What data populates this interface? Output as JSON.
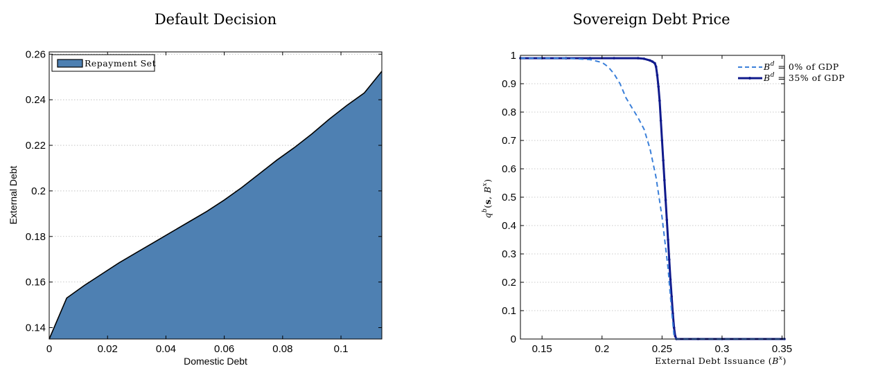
{
  "chart_data": [
    {
      "type": "area",
      "title": "Default Decision",
      "xlabel": "Domestic Debt",
      "ylabel": "External Debt",
      "xlim": [
        0,
        0.114
      ],
      "ylim": [
        0.135,
        0.261
      ],
      "x_ticks": [
        0,
        0.02,
        0.04,
        0.06,
        0.08,
        0.1
      ],
      "x_tick_labels": [
        "0",
        "0.02",
        "0.04",
        "0.06",
        "0.08",
        "0.1"
      ],
      "y_ticks": [
        0.14,
        0.16,
        0.18,
        0.2,
        0.22,
        0.24,
        0.26
      ],
      "y_tick_labels": [
        "0.14",
        "0.16",
        "0.18",
        "0.2",
        "0.22",
        "0.24",
        "0.26"
      ],
      "grid": "horizontal dotted",
      "legend_position": "top-left",
      "series": [
        {
          "name": "Repayment Set",
          "color": "#4e80b2",
          "x": [
            0,
            0.006,
            0.012,
            0.018,
            0.024,
            0.03,
            0.036,
            0.042,
            0.048,
            0.054,
            0.06,
            0.066,
            0.072,
            0.078,
            0.084,
            0.09,
            0.096,
            0.102,
            0.108,
            0.114
          ],
          "y": [
            0.135,
            0.153,
            0.1585,
            0.1635,
            0.1685,
            0.173,
            0.1775,
            0.182,
            0.1865,
            0.191,
            0.196,
            0.2015,
            0.2075,
            0.2135,
            0.219,
            0.225,
            0.2315,
            0.2375,
            0.243,
            0.2525
          ]
        }
      ]
    },
    {
      "type": "line",
      "title": "Sovereign Debt Price",
      "xlabel": "External Debt Issuance (B^{x})",
      "ylabel": "q^b(s, B^x)",
      "xlim": [
        0.132,
        0.352
      ],
      "ylim": [
        0,
        1
      ],
      "x_ticks": [
        0.15,
        0.2,
        0.25,
        0.3,
        0.35
      ],
      "x_tick_labels": [
        "0.15",
        "0.2",
        "0.25",
        "0.3",
        "0.35"
      ],
      "y_ticks": [
        0,
        0.1,
        0.2,
        0.3,
        0.4,
        0.5,
        0.6,
        0.7,
        0.8,
        0.9,
        1
      ],
      "y_tick_labels": [
        "0",
        "0.1",
        "0.2",
        "0.3",
        "0.4",
        "0.5",
        "0.6",
        "0.7",
        "0.8",
        "0.9",
        "1"
      ],
      "grid": "horizontal dotted",
      "legend_position": "top-right",
      "series": [
        {
          "name": "B^d = 0% of GDP",
          "legend_sup": "d",
          "legend_rest": " = 0% of GDP",
          "style": "dashed",
          "color": "#3a7fd9",
          "x": [
            0.132,
            0.15,
            0.17,
            0.19,
            0.2,
            0.205,
            0.21,
            0.215,
            0.22,
            0.225,
            0.23,
            0.235,
            0.24,
            0.245,
            0.25,
            0.255,
            0.258,
            0.26,
            0.262,
            0.28,
            0.3,
            0.352
          ],
          "y": [
            0.99,
            0.99,
            0.99,
            0.985,
            0.975,
            0.96,
            0.935,
            0.9,
            0.85,
            0.815,
            0.78,
            0.74,
            0.67,
            0.57,
            0.43,
            0.25,
            0.1,
            0.01,
            0.0,
            0.0,
            0.0,
            0.0
          ]
        },
        {
          "name": "B^d = 35% of GDP",
          "legend_sup": "d",
          "legend_rest": " = 35% of GDP",
          "style": "solid-with-markers",
          "color": "#101a8c",
          "x": [
            0.132,
            0.15,
            0.17,
            0.19,
            0.21,
            0.23,
            0.235,
            0.24,
            0.242,
            0.244,
            0.245,
            0.246,
            0.247,
            0.248,
            0.249,
            0.25,
            0.251,
            0.252,
            0.253,
            0.254,
            0.255,
            0.256,
            0.257,
            0.258,
            0.259,
            0.26,
            0.261,
            0.262,
            0.28,
            0.3,
            0.352
          ],
          "y": [
            0.99,
            0.99,
            0.99,
            0.99,
            0.99,
            0.99,
            0.988,
            0.982,
            0.978,
            0.972,
            0.96,
            0.93,
            0.89,
            0.84,
            0.77,
            0.7,
            0.63,
            0.56,
            0.49,
            0.42,
            0.35,
            0.28,
            0.21,
            0.15,
            0.09,
            0.04,
            0.01,
            0.0,
            0.0,
            0.0,
            0.0
          ]
        }
      ]
    }
  ]
}
